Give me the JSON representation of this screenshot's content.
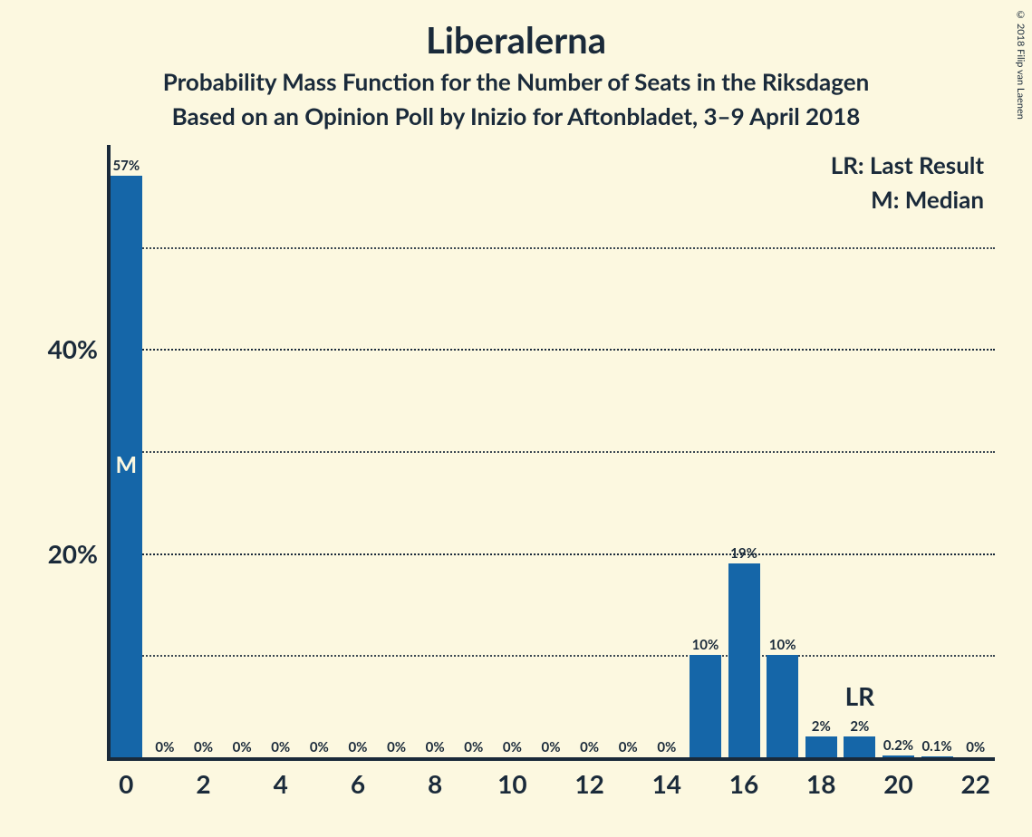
{
  "title": "Liberalerna",
  "subtitle1": "Probability Mass Function for the Number of Seats in the Riksdagen",
  "subtitle2": "Based on an Opinion Poll by Inizio for Aftonbladet, 3–9 April 2018",
  "copyright": "© 2018 Filip van Laenen",
  "legend": {
    "lr": "LR: Last Result",
    "m": "M: Median"
  },
  "chart": {
    "type": "bar",
    "background_color": "#fcf8e0",
    "bar_color": "#1566a8",
    "axis_color": "#1a2a3a",
    "grid_major_positions": [
      20,
      40
    ],
    "grid_minor_positions": [
      10,
      30,
      50
    ],
    "y_tick_labels": [
      {
        "value": 20,
        "label": "20%"
      },
      {
        "value": 40,
        "label": "40%"
      }
    ],
    "x_categories": [
      0,
      1,
      2,
      3,
      4,
      5,
      6,
      7,
      8,
      9,
      10,
      11,
      12,
      13,
      14,
      15,
      16,
      17,
      18,
      19,
      20,
      21,
      22
    ],
    "x_tick_step": 2,
    "ylim_max": 60,
    "bar_width_ratio": 0.82,
    "bars": [
      {
        "x": 0,
        "value": 57,
        "label": "57%",
        "marker": "M"
      },
      {
        "x": 1,
        "value": 0,
        "label": "0%"
      },
      {
        "x": 2,
        "value": 0,
        "label": "0%"
      },
      {
        "x": 3,
        "value": 0,
        "label": "0%"
      },
      {
        "x": 4,
        "value": 0,
        "label": "0%"
      },
      {
        "x": 5,
        "value": 0,
        "label": "0%"
      },
      {
        "x": 6,
        "value": 0,
        "label": "0%"
      },
      {
        "x": 7,
        "value": 0,
        "label": "0%"
      },
      {
        "x": 8,
        "value": 0,
        "label": "0%"
      },
      {
        "x": 9,
        "value": 0,
        "label": "0%"
      },
      {
        "x": 10,
        "value": 0,
        "label": "0%"
      },
      {
        "x": 11,
        "value": 0,
        "label": "0%"
      },
      {
        "x": 12,
        "value": 0,
        "label": "0%"
      },
      {
        "x": 13,
        "value": 0,
        "label": "0%"
      },
      {
        "x": 14,
        "value": 0,
        "label": "0%"
      },
      {
        "x": 15,
        "value": 10,
        "label": "10%"
      },
      {
        "x": 16,
        "value": 19,
        "label": "19%"
      },
      {
        "x": 17,
        "value": 10,
        "label": "10%"
      },
      {
        "x": 18,
        "value": 2,
        "label": "2%"
      },
      {
        "x": 19,
        "value": 2,
        "label": "2%",
        "lr": true
      },
      {
        "x": 20,
        "value": 0.2,
        "label": "0.2%"
      },
      {
        "x": 21,
        "value": 0.1,
        "label": "0.1%"
      },
      {
        "x": 22,
        "value": 0,
        "label": "0%"
      }
    ],
    "lr_text": "LR",
    "title_fontsize": 40,
    "subtitle_fontsize": 26,
    "axis_label_fontsize": 28,
    "bar_label_fontsize": 15
  }
}
